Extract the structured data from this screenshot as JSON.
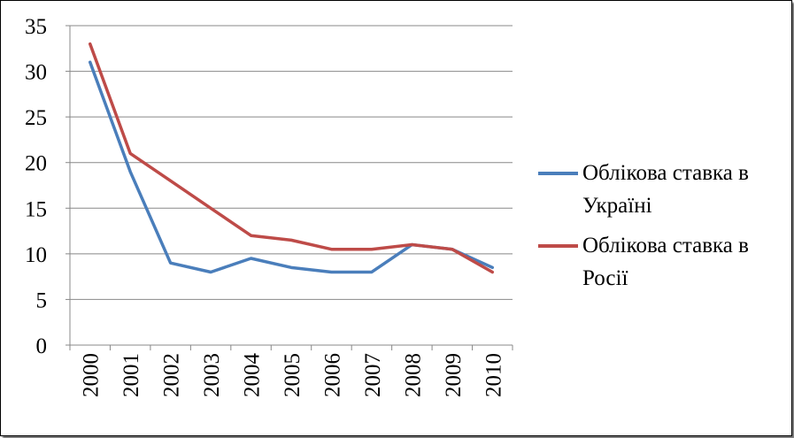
{
  "chart_data": {
    "type": "line",
    "x": [
      "2000",
      "2001",
      "2002",
      "2003",
      "2004",
      "2005",
      "2006",
      "2007",
      "2008",
      "2009",
      "2010"
    ],
    "series": [
      {
        "name": "Облікова ставка в Україні",
        "color": "#4a7ebb",
        "values": [
          31,
          19,
          9,
          8,
          9.5,
          8.5,
          8,
          8,
          11,
          10.5,
          8.5
        ]
      },
      {
        "name": "Облікова ставка в Росії",
        "color": "#be4b48",
        "values": [
          33,
          21,
          18,
          15,
          12,
          11.5,
          10.5,
          10.5,
          11,
          10.5,
          8
        ]
      }
    ],
    "yticks": [
      "0",
      "5",
      "10",
      "15",
      "20",
      "25",
      "30",
      "35"
    ],
    "ylim": [
      0,
      35
    ],
    "grid": true,
    "legend": "right"
  }
}
